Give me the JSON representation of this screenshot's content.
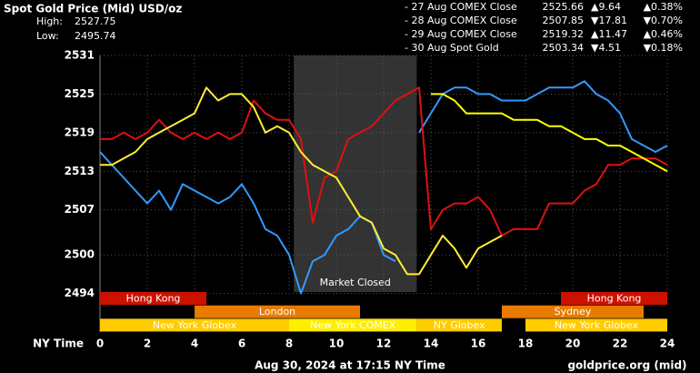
{
  "chart_data": {
    "type": "line",
    "title": "Spot Gold Price (Mid) USD/oz",
    "high_label": "High:",
    "high": 2527.75,
    "low_label": "Low:",
    "low": 2495.74,
    "x_label": "NY Time",
    "footer": "Aug 30, 2024 at 17:15 NY Time",
    "source": "goldprice.org (mid)",
    "market_closed": {
      "label": "Market Closed",
      "start": 8.2,
      "end": 13.4,
      "color": "#333333"
    },
    "x": [
      0,
      0.5,
      1,
      1.5,
      2,
      2.5,
      3,
      3.5,
      4,
      4.5,
      5,
      5.5,
      6,
      6.5,
      7,
      7.5,
      8,
      8.5,
      9,
      9.5,
      10,
      10.5,
      11,
      11.5,
      12,
      12.5,
      13,
      13.5,
      14,
      14.5,
      15,
      15.5,
      16,
      16.5,
      17,
      17.5,
      18,
      18.5,
      19,
      19.5,
      20,
      20.5,
      21,
      21.5,
      22,
      22.5,
      23,
      23.5,
      24
    ],
    "xlim": [
      0,
      24
    ],
    "xticks": [
      0,
      2,
      4,
      6,
      8,
      10,
      12,
      14,
      16,
      18,
      20,
      22,
      24
    ],
    "ylim": [
      2488,
      2531
    ],
    "yticks": [
      2531,
      2525,
      2519,
      2513,
      2507,
      2500,
      2494
    ],
    "grid": true,
    "series": [
      {
        "name": "- 27 Aug COMEX Close",
        "color": "#3399ff",
        "close": 2525.66,
        "change": "▲9.64",
        "change_pct": "▲0.38%",
        "change_color": "#33cc33",
        "values": [
          2516,
          2514,
          2512,
          2510,
          2508,
          2510,
          2507,
          2511,
          2510,
          2509,
          2508,
          2509,
          2511,
          2508,
          2504,
          2503,
          2500,
          2494,
          2499,
          2500,
          2503,
          2504,
          2506,
          2505,
          2500,
          2499,
          null,
          2519,
          2522,
          2525,
          2526,
          2526,
          2525,
          2525,
          2524,
          2524,
          2524,
          2525,
          2526,
          2526,
          2526,
          2527,
          2525,
          2524,
          2522,
          2518,
          2517,
          2516,
          2517
        ]
      },
      {
        "name": "- 28 Aug COMEX Close",
        "color": "#dd1111",
        "close": 2507.85,
        "change": "▼17.81",
        "change_pct": "▼0.70%",
        "change_color": "#ee2222",
        "values": [
          2518,
          2518,
          2519,
          2518,
          2519,
          2521,
          2519,
          2518,
          2519,
          2518,
          2519,
          2518,
          2519,
          2524,
          2522,
          2521,
          2521,
          2518,
          2505,
          2512,
          2513,
          2518,
          2519,
          2520,
          2522,
          2524,
          2525,
          2526,
          2504,
          2507,
          2508,
          2508,
          2509,
          2507,
          2503,
          2504,
          2504,
          2504,
          2508,
          2508,
          2508,
          2510,
          2511,
          2514,
          2514,
          2515,
          2515,
          2515,
          2514
        ]
      },
      {
        "name": "- 29 Aug COMEX Close",
        "color": "#ffff00",
        "close": 2519.32,
        "change": "▲11.47",
        "change_pct": "▲0.46%",
        "change_color": "#33cc33",
        "values": [
          null,
          null,
          null,
          null,
          null,
          null,
          null,
          null,
          null,
          null,
          null,
          null,
          null,
          null,
          null,
          null,
          null,
          null,
          null,
          null,
          null,
          null,
          null,
          null,
          null,
          null,
          null,
          null,
          2525,
          2525,
          2524,
          2522,
          2522,
          2522,
          2522,
          2521,
          2521,
          2521,
          2520,
          2520,
          2519,
          2518,
          2518,
          2517,
          2517,
          2516,
          2515,
          2514,
          2513
        ]
      },
      {
        "name": "- 30 Aug Spot Gold",
        "color": "#ffee33",
        "close": 2503.34,
        "change": "▼4.51",
        "change_pct": "▼0.18%",
        "change_color": "#ee2222",
        "values": [
          2514,
          2514,
          2515,
          2516,
          2518,
          2519,
          2520,
          2521,
          2522,
          2526,
          2524,
          2525,
          2525,
          2523,
          2519,
          2520,
          2519,
          2516,
          2514,
          2513,
          2512,
          2509,
          2506,
          2505,
          2501,
          2500,
          2497,
          2497,
          2500,
          2503,
          2501,
          2498,
          2501,
          2502,
          2503,
          null,
          null,
          null,
          null,
          null,
          null,
          null,
          null,
          null,
          null,
          null,
          null,
          null,
          null
        ]
      }
    ],
    "sessions": [
      {
        "label": "Hong Kong",
        "start": 0,
        "end": 4.5,
        "row": 0,
        "color": "#cc1100",
        "text_color": "#ffaa88"
      },
      {
        "label": "Hong Kong",
        "start": 19.5,
        "end": 24,
        "row": 0,
        "color": "#cc1100",
        "text_color": "#ffaa88"
      },
      {
        "label": "London",
        "start": 4,
        "end": 11,
        "row": 1,
        "color": "#e87a00",
        "text_color": "#ffffff"
      },
      {
        "label": "Sydney",
        "start": 17,
        "end": 23,
        "row": 1,
        "color": "#e87a00",
        "text_color": "#ffffff"
      },
      {
        "label": "New York Globex",
        "start": 0,
        "end": 8,
        "row": 2,
        "color": "#ffcc00",
        "text_color": "#332200"
      },
      {
        "label": "New York COMEX",
        "start": 8,
        "end": 13.4,
        "row": 2,
        "color": "#ffee00",
        "text_color": "#332200"
      },
      {
        "label": "NY Globex",
        "start": 13.4,
        "end": 17,
        "row": 2,
        "color": "#ffcc00",
        "text_color": "#332200"
      },
      {
        "label": "New York Globex",
        "start": 18,
        "end": 24,
        "row": 2,
        "color": "#ffcc00",
        "text_color": "#332200"
      }
    ]
  }
}
